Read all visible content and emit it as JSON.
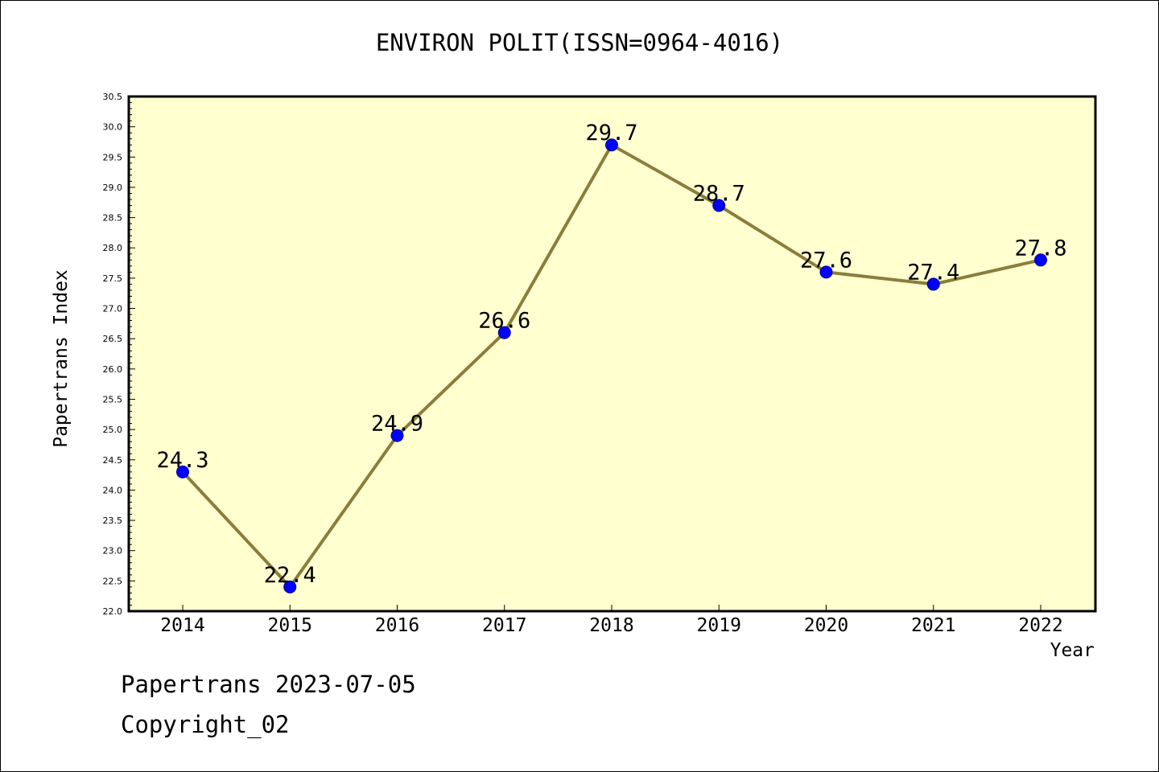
{
  "footer": {
    "line1": "Papertrans 2023-07-05",
    "line2": "Copyright_02"
  },
  "chart_data": {
    "type": "line",
    "title": "ENVIRON POLIT(ISSN=0964-4016)",
    "xlabel": "Year",
    "ylabel": "Papertrans Index",
    "categories": [
      "2014",
      "2015",
      "2016",
      "2017",
      "2018",
      "2019",
      "2020",
      "2021",
      "2022"
    ],
    "values": [
      24.3,
      22.4,
      24.9,
      26.6,
      29.7,
      28.7,
      27.6,
      27.4,
      27.8
    ],
    "data_labels": [
      "24.3",
      "22.4",
      "24.9",
      "26.6",
      "29.7",
      "28.7",
      "27.6",
      "27.4",
      "27.8"
    ],
    "ylim": [
      22.0,
      30.5
    ],
    "yticks": [
      "22.0",
      "22.5",
      "23.0",
      "23.5",
      "24.0",
      "24.5",
      "25.0",
      "25.5",
      "26.0",
      "26.5",
      "27.0",
      "27.5",
      "28.0",
      "28.5",
      "29.0",
      "29.5",
      "30.0",
      "30.5"
    ],
    "grid": false,
    "colors": {
      "plot_background": "#ffffd0",
      "line": "#8b7d3a",
      "marker": "#0000ff"
    }
  }
}
